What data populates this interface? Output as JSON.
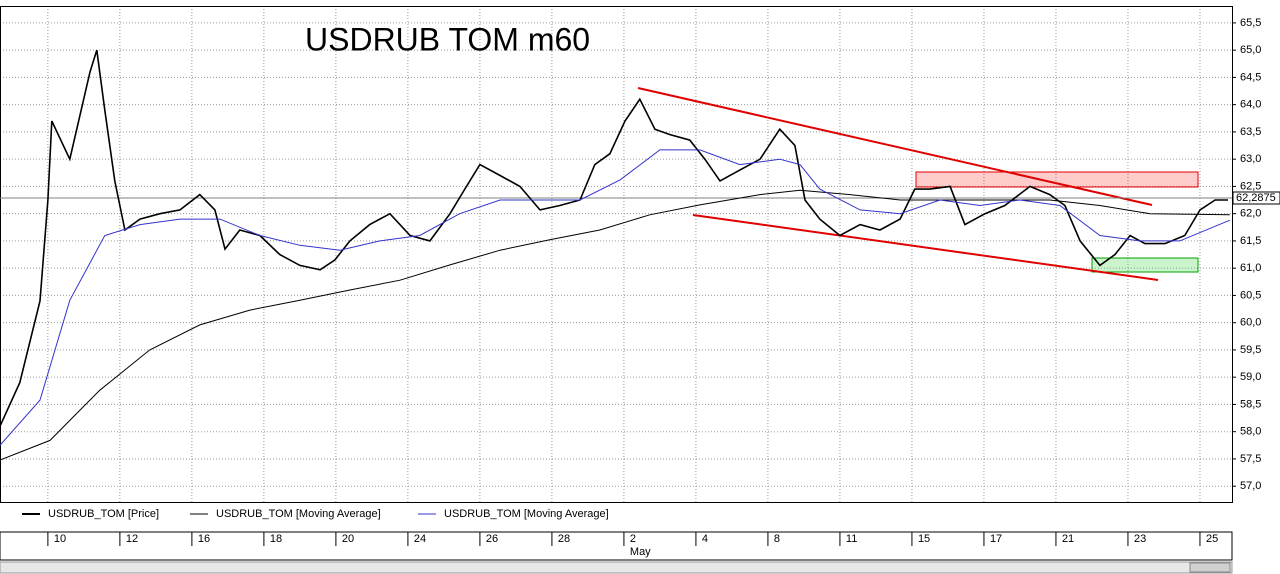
{
  "chart_data": {
    "type": "line",
    "title": "USDRUB   TOM   m60",
    "xlim": [
      -1.33,
      32.89
    ],
    "ylim": [
      56.71,
      65.81
    ],
    "xticks": [
      {
        "value": 0,
        "label": "10"
      },
      {
        "value": 2,
        "label": "12"
      },
      {
        "value": 4,
        "label": "16"
      },
      {
        "value": 6,
        "label": "18"
      },
      {
        "value": 8,
        "label": "20"
      },
      {
        "value": 10,
        "label": "24"
      },
      {
        "value": 12,
        "label": "26"
      },
      {
        "value": 14,
        "label": "28"
      },
      {
        "value": 16,
        "label": "2"
      },
      {
        "value": 18,
        "label": "4"
      },
      {
        "value": 20,
        "label": "8"
      },
      {
        "value": 22,
        "label": "11"
      },
      {
        "value": 24,
        "label": "15"
      },
      {
        "value": 26,
        "label": "17"
      },
      {
        "value": 28,
        "label": "21"
      },
      {
        "value": 30,
        "label": "23"
      },
      {
        "value": 32,
        "label": "25"
      }
    ],
    "month_label": "May",
    "yticks": [
      {
        "value": 57,
        "label": "57,0"
      },
      {
        "value": 57.5,
        "label": "57,5"
      },
      {
        "value": 58,
        "label": "58,0"
      },
      {
        "value": 58.5,
        "label": "58,5"
      },
      {
        "value": 59,
        "label": "59,0"
      },
      {
        "value": 59.5,
        "label": "59,5"
      },
      {
        "value": 60,
        "label": "60,0"
      },
      {
        "value": 60.5,
        "label": "60,5"
      },
      {
        "value": 61,
        "label": "61,0"
      },
      {
        "value": 61.5,
        "label": "61,5"
      },
      {
        "value": 62,
        "label": "62,0"
      },
      {
        "value": 62.5,
        "label": "62,5"
      },
      {
        "value": 63,
        "label": "63,0"
      },
      {
        "value": 63.5,
        "label": "63,5"
      },
      {
        "value": 64,
        "label": "64,0"
      },
      {
        "value": 64.5,
        "label": "64,5"
      },
      {
        "value": 65,
        "label": "65,0"
      },
      {
        "value": 65.5,
        "label": "65,5"
      }
    ],
    "grid": true,
    "last_price": {
      "value": 62.2875,
      "label": "62,2875"
    },
    "series": [
      {
        "name": "USDRUB_TOM [Price]",
        "color": "#000000",
        "x": [
          -1.33,
          -0.78,
          -0.22,
          0,
          0.11,
          0.61,
          1.17,
          1.36,
          1.58,
          1.86,
          2.14,
          2.56,
          3.11,
          3.67,
          4.22,
          4.64,
          4.92,
          5.33,
          5.89,
          6.44,
          7.0,
          7.56,
          7.97,
          8.39,
          8.94,
          9.5,
          10.06,
          10.61,
          11.17,
          11.58,
          12.0,
          12.56,
          13.11,
          13.67,
          14.22,
          14.78,
          15.19,
          15.61,
          16.03,
          16.44,
          16.86,
          17.28,
          17.83,
          18.25,
          18.67,
          19.22,
          19.78,
          20.33,
          20.75,
          21.03,
          21.44,
          22.0,
          22.56,
          23.11,
          23.67,
          24.08,
          24.5,
          25.06,
          25.47,
          26.03,
          26.58,
          27.28,
          27.83,
          28.25,
          28.67,
          29.22,
          29.64,
          30.06,
          30.47,
          31.03,
          31.58,
          32.0,
          32.42,
          32.78
        ],
        "values": [
          58.1,
          58.9,
          60.4,
          62.25,
          63.7,
          63.0,
          64.6,
          65.0,
          63.9,
          62.6,
          61.7,
          61.9,
          62.0,
          62.07,
          62.35,
          62.07,
          61.35,
          61.7,
          61.6,
          61.25,
          61.05,
          60.97,
          61.15,
          61.5,
          61.8,
          62.0,
          61.6,
          61.5,
          62.0,
          62.45,
          62.9,
          62.7,
          62.5,
          62.07,
          62.15,
          62.25,
          62.9,
          63.1,
          63.7,
          64.1,
          63.55,
          63.45,
          63.35,
          63.0,
          62.6,
          62.8,
          63.0,
          63.55,
          63.25,
          62.25,
          61.9,
          61.6,
          61.8,
          61.7,
          61.9,
          62.45,
          62.45,
          62.5,
          61.8,
          62.0,
          62.15,
          62.5,
          62.35,
          62.15,
          61.5,
          61.05,
          61.25,
          61.6,
          61.45,
          61.45,
          61.6,
          62.07,
          62.25,
          62.25
        ]
      },
      {
        "name": "USDRUB_TOM [Moving Average]",
        "color": "#000000",
        "x": [
          -1.33,
          0.06,
          1.44,
          2.83,
          4.22,
          5.61,
          7.0,
          8.39,
          9.78,
          11.17,
          12.56,
          13.94,
          15.33,
          16.72,
          18.11,
          19.78,
          20.89,
          22.28,
          23.67,
          25.06,
          26.44,
          27.83,
          29.22,
          30.61,
          32.83
        ],
        "values": [
          57.48,
          57.84,
          58.76,
          59.5,
          59.96,
          60.23,
          60.41,
          60.6,
          60.78,
          61.06,
          61.33,
          61.52,
          61.7,
          61.98,
          62.16,
          62.35,
          62.43,
          62.35,
          62.25,
          62.25,
          62.25,
          62.25,
          62.15,
          62.0,
          61.98
        ]
      },
      {
        "name": "USDRUB_TOM [Moving Average]",
        "color": "#3333cc",
        "x": [
          -1.33,
          -0.22,
          0.61,
          1.58,
          2.56,
          3.67,
          4.78,
          5.89,
          7.0,
          8.11,
          9.22,
          10.33,
          11.44,
          12.56,
          13.67,
          14.78,
          15.89,
          17.0,
          18.11,
          19.22,
          20.33,
          20.89,
          21.44,
          22.56,
          23.67,
          24.78,
          25.89,
          27.0,
          28.11,
          29.22,
          30.33,
          31.44,
          32.83
        ],
        "values": [
          57.75,
          58.58,
          60.41,
          61.6,
          61.8,
          61.9,
          61.9,
          61.6,
          61.42,
          61.33,
          61.5,
          61.6,
          62.0,
          62.25,
          62.25,
          62.25,
          62.62,
          63.17,
          63.17,
          62.9,
          63.0,
          62.9,
          62.45,
          62.07,
          62.0,
          62.25,
          62.15,
          62.25,
          62.15,
          61.6,
          61.5,
          61.5,
          61.88
        ]
      }
    ]
  }
}
